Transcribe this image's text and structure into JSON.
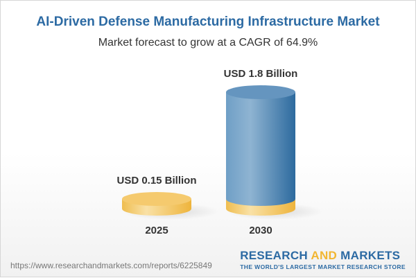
{
  "title": "AI-Driven Defense Manufacturing Infrastructure Market",
  "subtitle": "Market forecast to grow at a CAGR of 64.9%",
  "chart_data": {
    "type": "bar",
    "style": "3d-cylinder",
    "categories": [
      "2025",
      "2030"
    ],
    "values": [
      0.15,
      1.8
    ],
    "data_labels": [
      "USD 0.15 Billion",
      "USD 1.8 Billion"
    ],
    "unit": "USD Billion",
    "colors": {
      "base": "#f3c862",
      "bar": "#5d93bf"
    }
  },
  "footer": {
    "url": "https://www.researchandmarkets.com/reports/6225849",
    "logo_part1": "RESEARCH",
    "logo_part2": "AND",
    "logo_part3": "MARKETS",
    "tagline": "THE WORLD'S LARGEST MARKET RESEARCH STORE"
  }
}
